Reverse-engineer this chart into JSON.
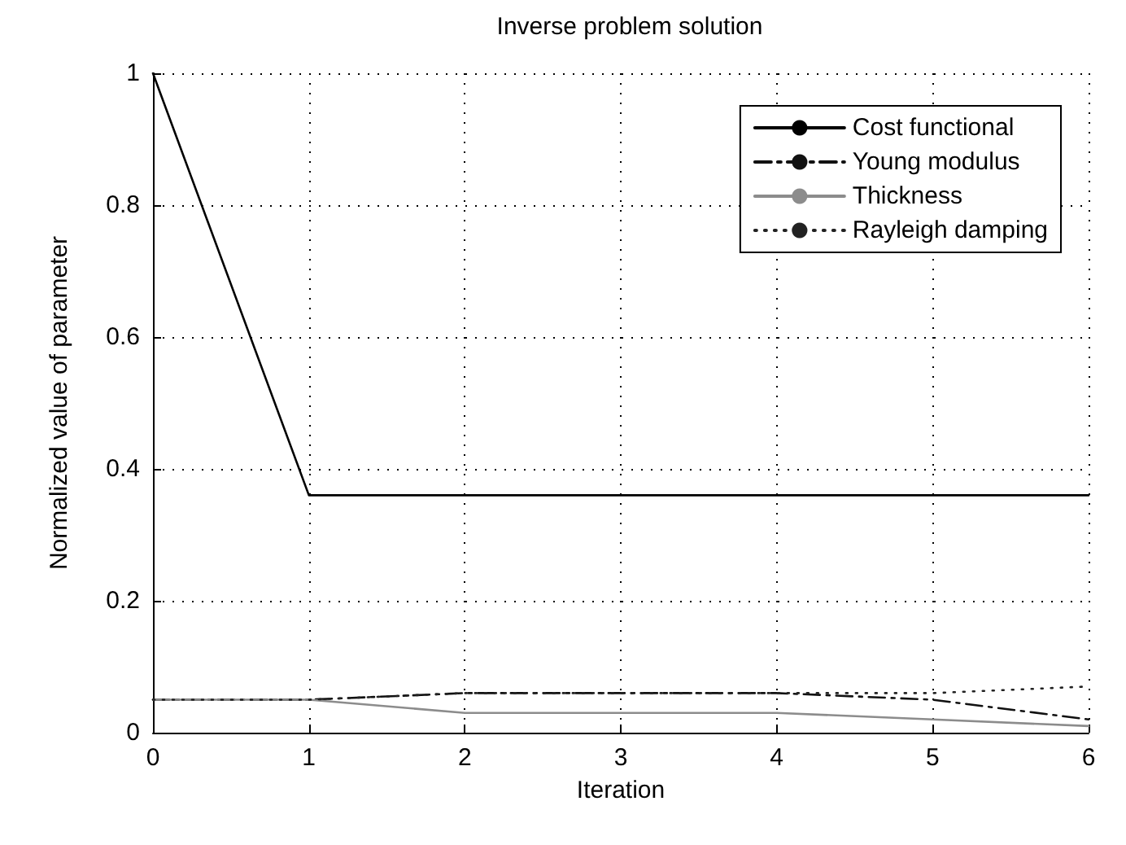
{
  "chart_data": {
    "type": "line",
    "title": "Inverse problem solution",
    "xlabel": "Iteration",
    "ylabel": "Normalized value of parameter",
    "x": [
      0,
      1,
      2,
      3,
      4,
      5,
      6
    ],
    "series": [
      {
        "name": "Cost functional",
        "color": "#000000",
        "line_style": "solid",
        "values": [
          1,
          0.36,
          0.36,
          0.36,
          0.36,
          0.36,
          0.36
        ]
      },
      {
        "name": "Young modulus",
        "color": "#111111",
        "line_style": "dashed",
        "values": [
          0.05,
          0.05,
          0.06,
          0.06,
          0.06,
          0.05,
          0.02
        ]
      },
      {
        "name": "Thickness",
        "color": "#8c8c8c",
        "line_style": "solid",
        "values": [
          0.05,
          0.05,
          0.03,
          0.03,
          0.03,
          0.02,
          0.01
        ]
      },
      {
        "name": "Rayleigh damping",
        "color": "#222222",
        "line_style": "dotted",
        "values": [
          0.05,
          0.05,
          0.06,
          0.06,
          0.06,
          0.06,
          0.07
        ]
      }
    ],
    "xlim": [
      0,
      6
    ],
    "xticks": [
      0,
      1,
      2,
      3,
      4,
      5,
      6
    ],
    "ylim": [
      0,
      1
    ],
    "yticks": [
      0,
      0.2,
      0.4,
      0.6,
      0.8,
      1
    ],
    "grid": true,
    "legend": "top right",
    "marker": "none"
  }
}
